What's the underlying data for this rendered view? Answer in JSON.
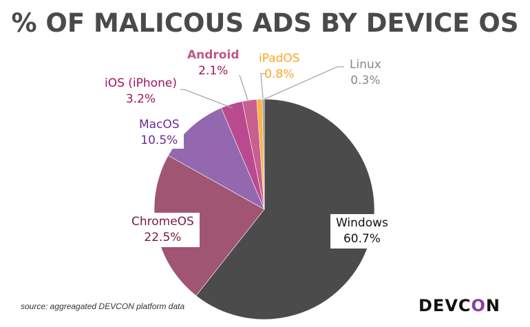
{
  "chart_data": {
    "type": "pie",
    "title": "% OF MALICOUS ADS BY DEVICE OS",
    "slices": [
      {
        "label": "Windows",
        "value": 60.7,
        "display": "60.7%",
        "color": "#4b4b4b",
        "label_color": "#111111"
      },
      {
        "label": "ChromeOS",
        "value": 22.5,
        "display": "22.5%",
        "color": "#a05572",
        "label_color": "#7a1840"
      },
      {
        "label": "MacOS",
        "value": 10.5,
        "display": "10.5%",
        "color": "#9468ae",
        "label_color": "#6a2a9a"
      },
      {
        "label": "iOS (iPhone)",
        "value": 3.2,
        "display": "3.2%",
        "color": "#b94a8f",
        "label_color": "#a3125e"
      },
      {
        "label": "Android",
        "value": 2.1,
        "display": "2.1%",
        "color": "#c85f8f",
        "label_color": "#c0568a"
      },
      {
        "label": "iPadOS",
        "value": 0.8,
        "display": "0.8%",
        "color": "#ffb445",
        "label_color": "#ffa524"
      },
      {
        "label": "Linux",
        "value": 0.3,
        "display": "0.3%",
        "color": "#9a9a9a",
        "label_color": "#888888"
      }
    ],
    "legend": "none"
  },
  "source": "source: aggreagated DEVCON platform data",
  "logo": "DEVCON"
}
